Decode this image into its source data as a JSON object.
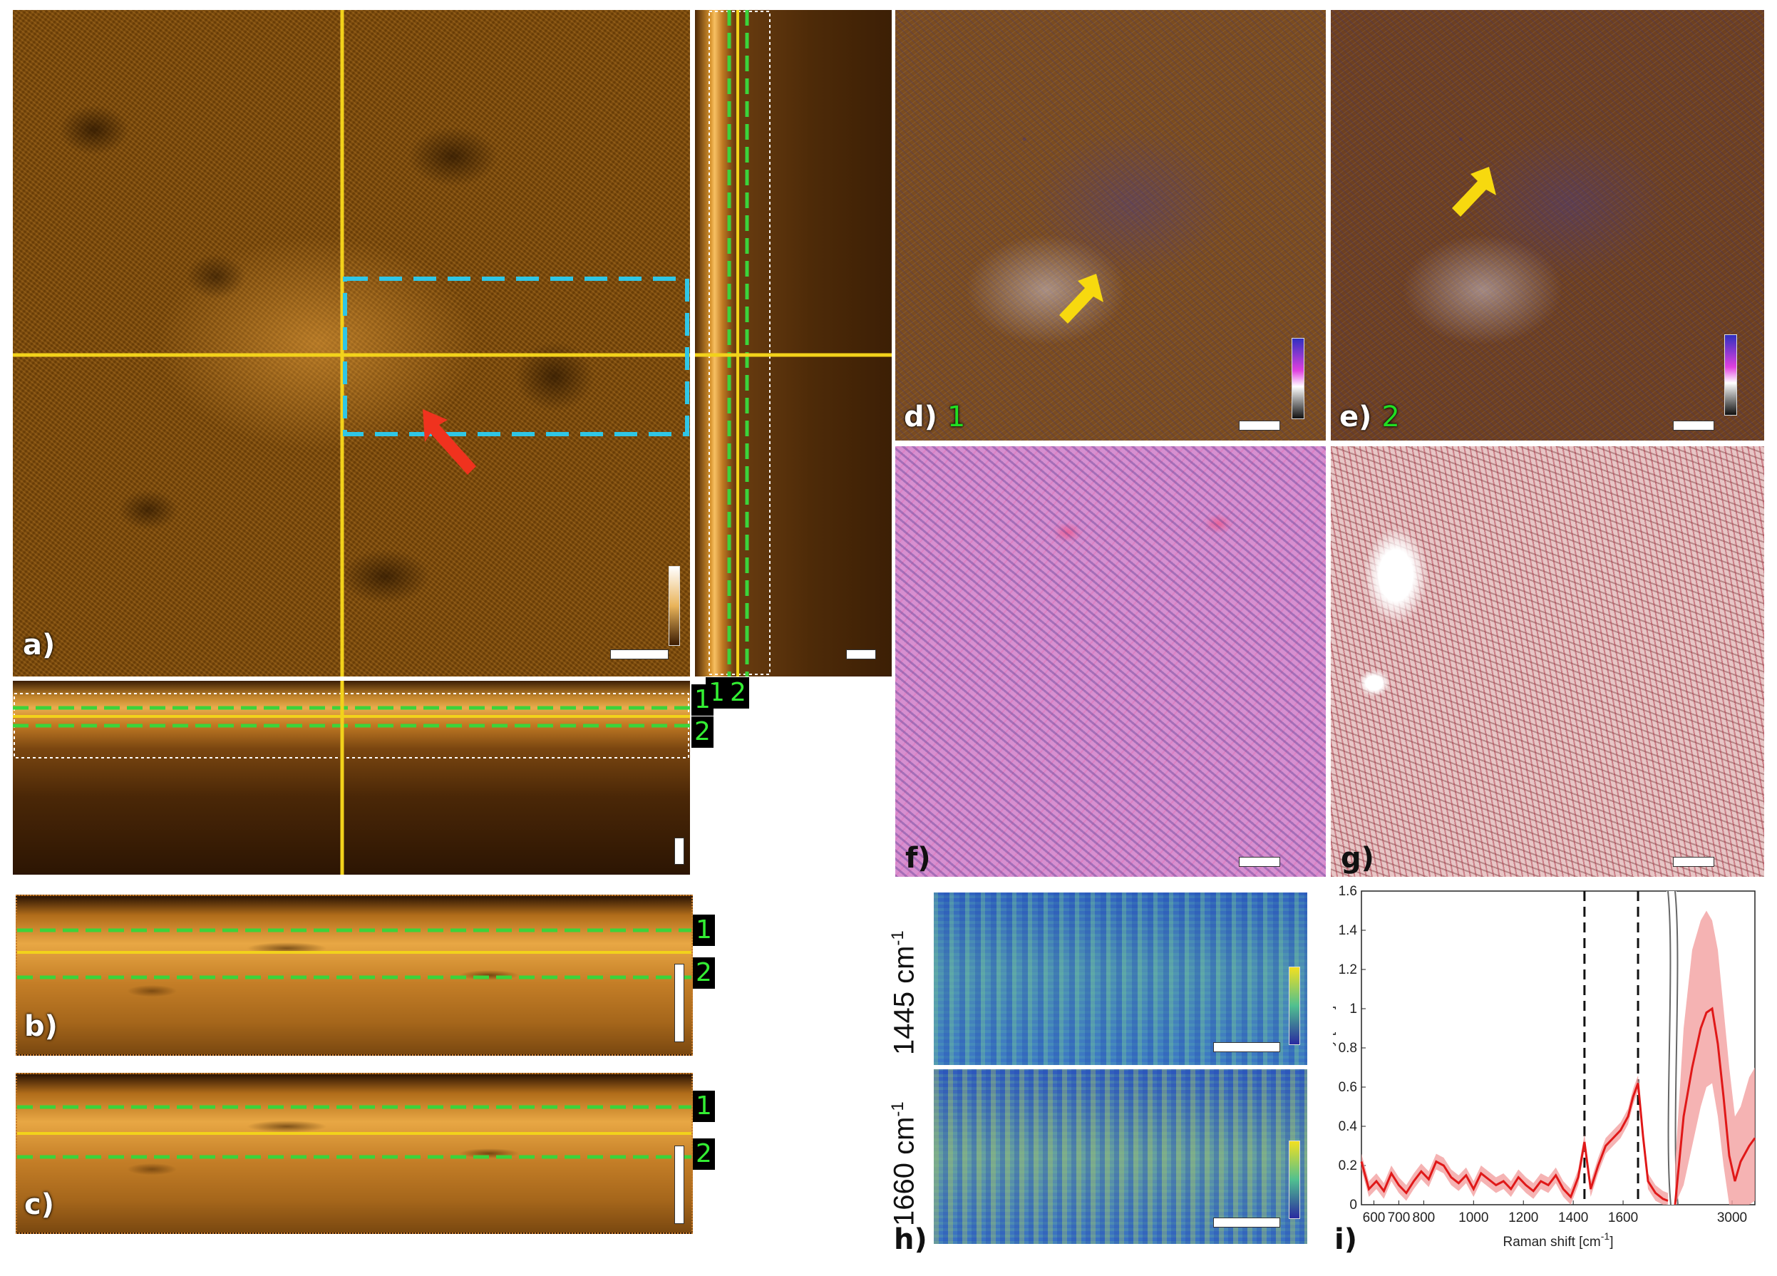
{
  "panels": {
    "a": {
      "label": "a)"
    },
    "b": {
      "label": "b)"
    },
    "c": {
      "label": "c)"
    },
    "d": {
      "label": "d)",
      "number": "1"
    },
    "e": {
      "label": "e)",
      "number": "2"
    },
    "f": {
      "label": "f)"
    },
    "g": {
      "label": "g)"
    },
    "h": {
      "label": "h)",
      "row1_label": "1445 cm",
      "row2_label": "1660 cm",
      "superscript": "-1"
    },
    "i": {
      "label": "i)"
    }
  },
  "layer_markers": {
    "one": "1",
    "two": "2"
  },
  "colors": {
    "crosshair": "#f2d21b",
    "layer_dash": "#3bd43b",
    "roi_box": "#2fc6e6",
    "arrow_a": "#f0321e",
    "arrow_de": "#f7d90f",
    "spectrum": "#e01818",
    "spectrum_band": "#f3a0a0"
  },
  "chart_data": {
    "type": "line",
    "xlabel": "Raman shift [cm",
    "xlabel_sup": "-1",
    "xlabel_close": "]",
    "ylabel": "Intensity [a.u.]",
    "ylim": [
      0,
      1.6
    ],
    "yticks": [
      "0",
      "0.2",
      "0.4",
      "0.6",
      "0.8",
      "1",
      "1.2",
      "1.4",
      "1.6"
    ],
    "xticks_left": [
      "600",
      "700",
      "800",
      "1000",
      "1200",
      "1400",
      "1600"
    ],
    "xticks_right": [
      "3000"
    ],
    "xlim_left": [
      550,
      1780
    ],
    "xlim_right": [
      2800,
      3080
    ],
    "axis_break": true,
    "vlines": [
      1445,
      1660
    ],
    "series": [
      {
        "x": [
          550,
          580,
          610,
          640,
          670,
          700,
          730,
          760,
          790,
          820,
          850,
          880,
          910,
          940,
          970,
          1000,
          1030,
          1060,
          1090,
          1120,
          1150,
          1180,
          1210,
          1240,
          1270,
          1300,
          1330,
          1360,
          1390,
          1420,
          1445,
          1470,
          1500,
          1530,
          1560,
          1590,
          1620,
          1640,
          1660,
          1680,
          1700,
          1730,
          1760,
          1780
        ],
        "y": [
          0.22,
          0.08,
          0.12,
          0.07,
          0.16,
          0.1,
          0.06,
          0.12,
          0.17,
          0.13,
          0.22,
          0.2,
          0.14,
          0.11,
          0.15,
          0.08,
          0.16,
          0.13,
          0.1,
          0.12,
          0.08,
          0.14,
          0.1,
          0.07,
          0.12,
          0.1,
          0.15,
          0.08,
          0.04,
          0.14,
          0.32,
          0.08,
          0.2,
          0.3,
          0.34,
          0.38,
          0.45,
          0.55,
          0.62,
          0.35,
          0.12,
          0.06,
          0.03,
          0.02
        ],
        "band": 0.04
      },
      {
        "x": [
          2800,
          2830,
          2860,
          2890,
          2910,
          2930,
          2950,
          2970,
          2990,
          3010,
          3030,
          3060,
          3080
        ],
        "y": [
          0.0,
          0.45,
          0.7,
          0.9,
          0.98,
          1.0,
          0.82,
          0.55,
          0.25,
          0.12,
          0.22,
          0.3,
          0.34
        ],
        "band_upper": [
          0.2,
          0.9,
          1.3,
          1.45,
          1.5,
          1.45,
          1.3,
          1.0,
          0.7,
          0.45,
          0.5,
          0.65,
          0.7
        ],
        "band_lower": [
          0.0,
          0.1,
          0.3,
          0.5,
          0.6,
          0.62,
          0.45,
          0.2,
          0.0,
          0.0,
          0.0,
          0.0,
          0.02
        ]
      }
    ]
  }
}
